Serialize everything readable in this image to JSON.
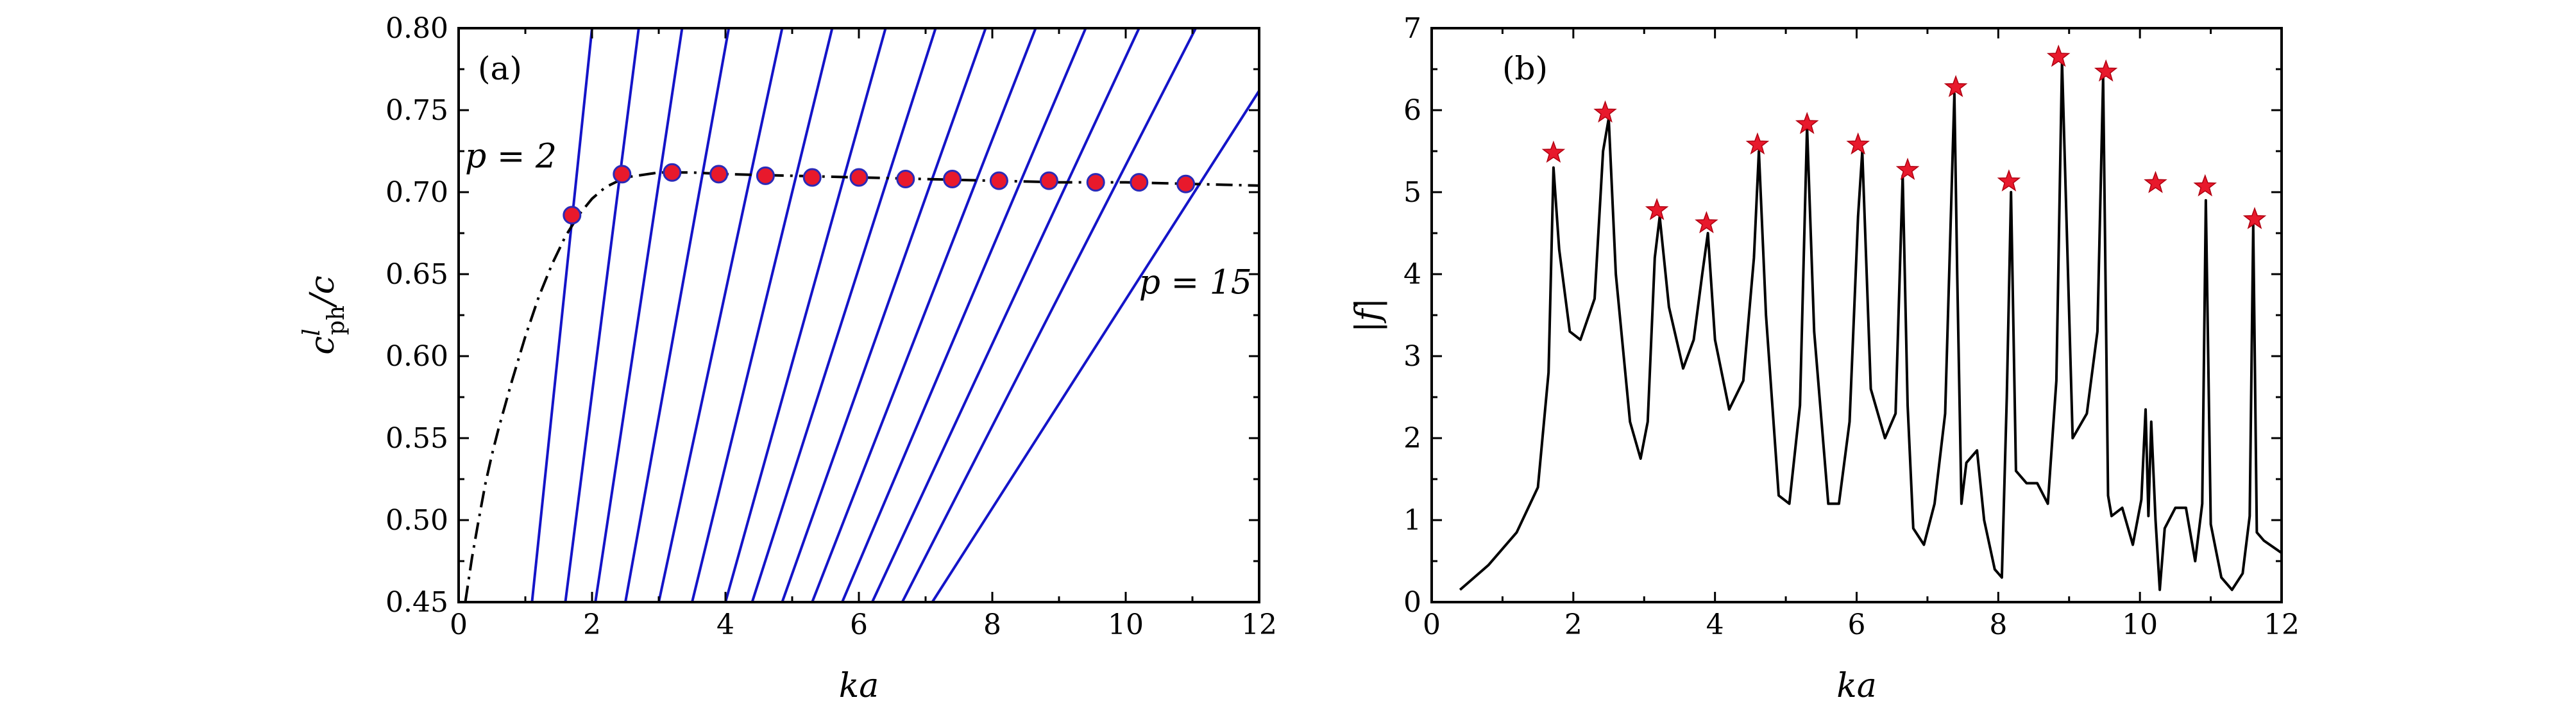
{
  "chart_data": [
    {
      "type": "line",
      "panel_label": "(a)",
      "xlabel": "ka",
      "ylabel": "c^l_ph/c",
      "ylabel_main": "c",
      "ylabel_sup": "l",
      "ylabel_sub": "ph",
      "ylabel_tail": "/c",
      "xlim": [
        0,
        12
      ],
      "ylim": [
        0.45,
        0.8
      ],
      "xticks": [
        0,
        2,
        4,
        6,
        8,
        10,
        12
      ],
      "yticks": [
        0.45,
        0.5,
        0.55,
        0.6,
        0.65,
        0.7,
        0.75,
        0.8
      ],
      "xtick_labels": [
        "0",
        "2",
        "4",
        "6",
        "8",
        "10",
        "12"
      ],
      "ytick_labels": [
        "0.45",
        "0.50",
        "0.55",
        "0.60",
        "0.65",
        "0.70",
        "0.75",
        "0.80"
      ],
      "annotations": [
        {
          "text": "p = 2",
          "x": 0.15,
          "y": 0.715
        },
        {
          "text": "p = 15",
          "x": 10.2,
          "y": 0.638
        }
      ],
      "dispersion_curve": {
        "style": "dash-dot",
        "color": "#000000",
        "x": [
          0.1,
          0.2,
          0.3,
          0.4,
          0.5,
          0.6,
          0.8,
          1.0,
          1.2,
          1.4,
          1.6,
          1.8,
          2.0,
          2.2,
          2.5,
          3.0,
          3.5,
          4.0,
          5.0,
          6.0,
          7.0,
          8.0,
          9.0,
          10.0,
          11.0,
          12.0
        ],
        "y": [
          0.45,
          0.477,
          0.5,
          0.522,
          0.54,
          0.556,
          0.585,
          0.612,
          0.636,
          0.656,
          0.673,
          0.686,
          0.696,
          0.703,
          0.709,
          0.712,
          0.712,
          0.711,
          0.71,
          0.709,
          0.708,
          0.707,
          0.706,
          0.706,
          0.705,
          0.704
        ]
      },
      "lines": {
        "color": "#1414c8",
        "p": [
          2,
          3,
          4,
          5,
          6,
          7,
          8,
          9,
          10,
          11,
          12,
          13,
          14,
          15
        ],
        "x_at_bottom": [
          1.1,
          1.6,
          2.05,
          2.5,
          3.0,
          3.5,
          4.0,
          4.4,
          4.85,
          5.3,
          5.75,
          6.2,
          6.65,
          7.1
        ],
        "x_at_top": [
          2.0,
          2.7,
          3.35,
          4.05,
          4.85,
          5.6,
          6.4,
          7.15,
          7.9,
          8.65,
          9.4,
          10.2,
          11.05,
          12.6
        ]
      },
      "points": {
        "color": "#e8192c",
        "edge": "#2a2ab8",
        "x": [
          1.7,
          2.45,
          3.2,
          3.9,
          4.6,
          5.3,
          6.0,
          6.7,
          7.4,
          8.1,
          8.85,
          9.55,
          10.2,
          10.9
        ],
        "y": [
          0.686,
          0.711,
          0.712,
          0.711,
          0.71,
          0.709,
          0.709,
          0.708,
          0.708,
          0.707,
          0.707,
          0.706,
          0.706,
          0.705
        ]
      }
    },
    {
      "type": "line",
      "panel_label": "(b)",
      "xlabel": "ka",
      "ylabel": "|f|",
      "xlim": [
        0,
        12
      ],
      "ylim": [
        0,
        7
      ],
      "xticks": [
        0,
        2,
        4,
        6,
        8,
        10,
        12
      ],
      "yticks": [
        0,
        1,
        2,
        3,
        4,
        5,
        6,
        7
      ],
      "xtick_labels": [
        "0",
        "2",
        "4",
        "6",
        "8",
        "10",
        "12"
      ],
      "ytick_labels": [
        "0",
        "1",
        "2",
        "3",
        "4",
        "5",
        "6",
        "7"
      ],
      "series": [
        {
          "color": "#000000",
          "x": [
            0.4,
            0.8,
            1.2,
            1.5,
            1.65,
            1.72,
            1.8,
            1.95,
            2.1,
            2.3,
            2.42,
            2.5,
            2.6,
            2.8,
            2.95,
            3.05,
            3.15,
            3.22,
            3.35,
            3.55,
            3.7,
            3.82,
            3.9,
            4.0,
            4.2,
            4.4,
            4.55,
            4.62,
            4.72,
            4.9,
            5.05,
            5.2,
            5.3,
            5.4,
            5.6,
            5.75,
            5.9,
            6.02,
            6.08,
            6.2,
            6.4,
            6.55,
            6.65,
            6.72,
            6.8,
            6.95,
            7.1,
            7.25,
            7.38,
            7.42,
            7.48,
            7.55,
            7.7,
            7.8,
            7.95,
            8.05,
            8.12,
            8.18,
            8.25,
            8.4,
            8.55,
            8.7,
            8.82,
            8.9,
            9.05,
            9.25,
            9.4,
            9.48,
            9.55,
            9.6,
            9.75,
            9.9,
            10.02,
            10.08,
            10.12,
            10.16,
            10.22,
            10.28,
            10.35,
            10.5,
            10.65,
            10.78,
            10.88,
            10.93,
            11.0,
            11.15,
            11.3,
            11.45,
            11.55,
            11.6,
            11.65,
            11.75,
            12.0
          ],
          "y": [
            0.15,
            0.45,
            0.85,
            1.4,
            2.8,
            5.3,
            4.3,
            3.3,
            3.2,
            3.7,
            5.5,
            5.9,
            4.0,
            2.2,
            1.75,
            2.2,
            4.2,
            4.7,
            3.6,
            2.85,
            3.2,
            4.0,
            4.5,
            3.2,
            2.35,
            2.7,
            4.2,
            5.5,
            3.5,
            1.3,
            1.2,
            2.4,
            5.8,
            3.3,
            1.2,
            1.2,
            2.2,
            4.7,
            5.5,
            2.6,
            2.0,
            2.3,
            5.2,
            2.4,
            0.9,
            0.7,
            1.2,
            2.3,
            6.2,
            4.0,
            1.2,
            1.7,
            1.85,
            1.0,
            0.4,
            0.3,
            2.5,
            5.0,
            1.6,
            1.45,
            1.45,
            1.2,
            2.7,
            6.6,
            2.0,
            2.3,
            3.3,
            6.4,
            1.3,
            1.05,
            1.15,
            0.7,
            1.25,
            2.35,
            1.05,
            2.2,
            1.0,
            0.15,
            0.9,
            1.15,
            1.15,
            0.5,
            1.2,
            4.9,
            0.95,
            0.3,
            0.15,
            0.35,
            1.05,
            4.6,
            0.85,
            0.75,
            0.6
          ]
        }
      ],
      "peaks": {
        "marker": "star",
        "color": "#e8192c",
        "x": [
          1.72,
          2.45,
          3.18,
          3.88,
          4.6,
          5.3,
          6.02,
          6.72,
          7.4,
          8.15,
          8.85,
          9.52,
          10.22,
          10.92,
          11.62
        ],
        "y": [
          5.48,
          5.97,
          4.78,
          4.62,
          5.58,
          5.83,
          5.58,
          5.27,
          6.28,
          5.13,
          6.65,
          6.47,
          5.11,
          5.07,
          4.67
        ]
      }
    }
  ]
}
